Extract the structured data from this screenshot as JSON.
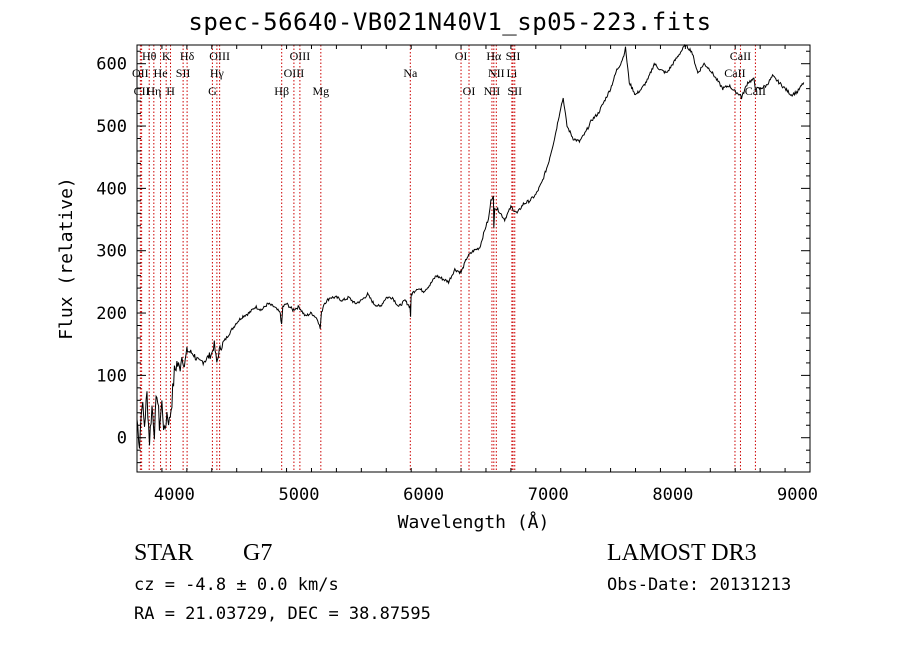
{
  "chart_data": {
    "type": "line",
    "title": "spec-56640-VB021N40V1_sp05-223.fits",
    "xlabel": "Wavelength (Å)",
    "ylabel": "Flux (relative)",
    "xlim": [
      3700,
      9100
    ],
    "ylim": [
      -55,
      630
    ],
    "x_ticks": [
      4000,
      5000,
      6000,
      7000,
      8000,
      9000
    ],
    "y_ticks": [
      0,
      100,
      200,
      300,
      400,
      500,
      600
    ],
    "series": [
      {
        "name": "spectrum",
        "x": [
          3700,
          3720,
          3740,
          3760,
          3780,
          3800,
          3820,
          3840,
          3860,
          3880,
          3900,
          3920,
          3940,
          3960,
          3980,
          4000,
          4020,
          4040,
          4060,
          4080,
          4100,
          4150,
          4200,
          4250,
          4300,
          4320,
          4340,
          4360,
          4400,
          4450,
          4500,
          4550,
          4600,
          4650,
          4700,
          4750,
          4800,
          4850,
          4860,
          4870,
          4900,
          4950,
          5000,
          5050,
          5100,
          5150,
          5170,
          5180,
          5200,
          5250,
          5300,
          5350,
          5400,
          5450,
          5500,
          5550,
          5600,
          5650,
          5700,
          5750,
          5800,
          5850,
          5890,
          5895,
          5900,
          5950,
          6000,
          6050,
          6100,
          6150,
          6200,
          6250,
          6300,
          6350,
          6400,
          6450,
          6500,
          6520,
          6540,
          6560,
          6563,
          6570,
          6600,
          6650,
          6700,
          6750,
          6800,
          6850,
          6900,
          6950,
          7000,
          7050,
          7080,
          7100,
          7120,
          7150,
          7200,
          7250,
          7300,
          7350,
          7400,
          7450,
          7500,
          7550,
          7580,
          7600,
          7620,
          7650,
          7700,
          7750,
          7800,
          7850,
          7900,
          7950,
          8000,
          8050,
          8100,
          8150,
          8200,
          8250,
          8300,
          8350,
          8400,
          8450,
          8500,
          8542,
          8550,
          8600,
          8650,
          8662,
          8700,
          8750,
          8800,
          8850,
          8900,
          8950,
          9000,
          9050
        ],
        "y": [
          30,
          -10,
          60,
          20,
          70,
          -5,
          50,
          10,
          75,
          20,
          55,
          5,
          40,
          25,
          60,
          105,
          120,
          110,
          130,
          115,
          140,
          135,
          120,
          125,
          135,
          150,
          120,
          140,
          155,
          170,
          185,
          195,
          200,
          210,
          205,
          215,
          210,
          200,
          180,
          210,
          215,
          205,
          210,
          195,
          200,
          190,
          175,
          200,
          215,
          225,
          225,
          220,
          225,
          215,
          220,
          230,
          215,
          210,
          225,
          225,
          210,
          220,
          210,
          195,
          230,
          240,
          235,
          245,
          260,
          255,
          250,
          270,
          265,
          290,
          300,
          305,
          340,
          350,
          380,
          390,
          335,
          370,
          365,
          350,
          370,
          360,
          375,
          380,
          390,
          410,
          440,
          480,
          510,
          530,
          545,
          500,
          480,
          475,
          490,
          510,
          520,
          540,
          560,
          590,
          600,
          610,
          625,
          570,
          550,
          560,
          575,
          600,
          590,
          585,
          600,
          615,
          630,
          620,
          585,
          600,
          590,
          575,
          560,
          565,
          555,
          550,
          545,
          570,
          575,
          560,
          560,
          565,
          580,
          570,
          560,
          550,
          555,
          570
        ]
      }
    ],
    "lines": [
      {
        "label": "Hθ",
        "x": 3798
      },
      {
        "label": "OII",
        "x": 3727
      },
      {
        "label": "CII",
        "x": 3737
      },
      {
        "label": "He",
        "x": 3889
      },
      {
        "label": "Hη",
        "x": 3835
      },
      {
        "label": "K",
        "x": 3934
      },
      {
        "label": "H",
        "x": 3969
      },
      {
        "label": "Hδ",
        "x": 4102
      },
      {
        "label": "SII",
        "x": 4070
      },
      {
        "label": "OIII",
        "x": 4363
      },
      {
        "label": "Hγ",
        "x": 4341
      },
      {
        "label": "G",
        "x": 4305
      },
      {
        "label": "Hβ",
        "x": 4861
      },
      {
        "label": "OIII",
        "x": 4959
      },
      {
        "label": "OIII",
        "x": 5007
      },
      {
        "label": "Mg",
        "x": 5175
      },
      {
        "label": "Na",
        "x": 5893
      },
      {
        "label": "OI",
        "x": 6300
      },
      {
        "label": "OI",
        "x": 6364
      },
      {
        "label": "Hα",
        "x": 6563
      },
      {
        "label": "NII",
        "x": 6548
      },
      {
        "label": "NII",
        "x": 6583
      },
      {
        "label": "SII",
        "x": 6717
      },
      {
        "label": "SII",
        "x": 6731
      },
      {
        "label": "Li",
        "x": 6708
      },
      {
        "label": "CaII",
        "x": 8498
      },
      {
        "label": "CaII",
        "x": 8542
      },
      {
        "label": "CaII",
        "x": 8662
      }
    ],
    "line_labels": [
      {
        "text": "Hθ",
        "x": 3798,
        "row": 0
      },
      {
        "text": "K",
        "x": 3934,
        "row": 0
      },
      {
        "text": "Hδ",
        "x": 4102,
        "row": 0
      },
      {
        "text": "OIII",
        "x": 4363,
        "row": 0
      },
      {
        "text": "OIII",
        "x": 5007,
        "row": 0
      },
      {
        "text": "OI",
        "x": 6300,
        "row": 0
      },
      {
        "text": "Hα",
        "x": 6563,
        "row": 0
      },
      {
        "text": "SII",
        "x": 6717,
        "row": 0
      },
      {
        "text": "CaII",
        "x": 8542,
        "row": 0
      },
      {
        "text": "OII",
        "x": 3727,
        "row": 1
      },
      {
        "text": "He",
        "x": 3889,
        "row": 1
      },
      {
        "text": "SII",
        "x": 4070,
        "row": 1
      },
      {
        "text": "Hγ",
        "x": 4341,
        "row": 1
      },
      {
        "text": "OIII",
        "x": 4959,
        "row": 1
      },
      {
        "text": "Na",
        "x": 5893,
        "row": 1
      },
      {
        "text": "NII",
        "x": 6583,
        "row": 1
      },
      {
        "text": "Li",
        "x": 6708,
        "row": 1
      },
      {
        "text": "CaII",
        "x": 8498,
        "row": 1
      },
      {
        "text": "CII",
        "x": 3737,
        "row": 2
      },
      {
        "text": "Hη",
        "x": 3835,
        "row": 2
      },
      {
        "text": "H",
        "x": 3969,
        "row": 2
      },
      {
        "text": "G",
        "x": 4305,
        "row": 2
      },
      {
        "text": "Hβ",
        "x": 4861,
        "row": 2
      },
      {
        "text": "Mg",
        "x": 5175,
        "row": 2
      },
      {
        "text": "OI",
        "x": 6364,
        "row": 2
      },
      {
        "text": "NII",
        "x": 6548,
        "row": 2
      },
      {
        "text": "SII",
        "x": 6731,
        "row": 2
      },
      {
        "text": "CaII",
        "x": 8662,
        "row": 2
      }
    ],
    "line_color": "#cc0000"
  },
  "info": {
    "class_label": "STAR",
    "subclass": "G7",
    "survey": "LAMOST DR3",
    "redshift_text": "cz = -4.8 ± 0.0 km/s",
    "obs_date_text": "Obs-Date: 20131213",
    "coords_text": "RA =  21.03729, DEC =  38.87595"
  }
}
